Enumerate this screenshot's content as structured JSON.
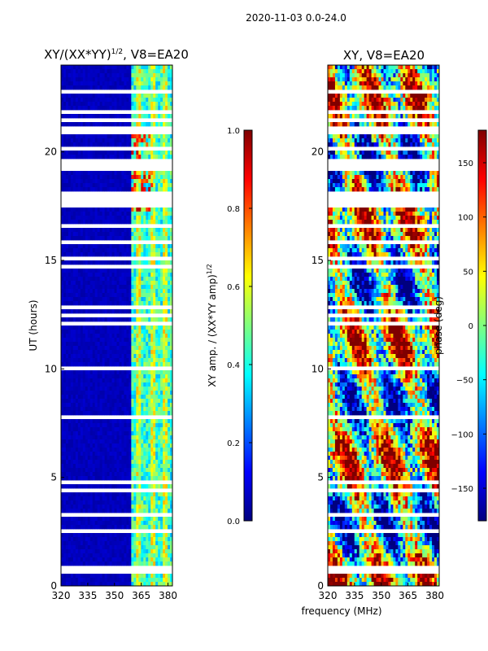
{
  "suptitle": "2020-11-03 0.0-24.0",
  "colors": {
    "background": "#000080",
    "jet": [
      "#00007f",
      "#0000ff",
      "#007fff",
      "#00ffff",
      "#7fff7f",
      "#ffff00",
      "#ff7f00",
      "#ff0000",
      "#7f0000"
    ]
  },
  "chart_data": [
    {
      "type": "heatmap",
      "title": "XY/(XX*YY)",
      "title_sup": "1/2",
      "title_suffix": ", V8=EA20",
      "xlabel": "",
      "ylabel": "UT (hours)",
      "xlim": [
        320,
        382.5
      ],
      "ylim": [
        0,
        24
      ],
      "xticks": [
        320,
        335,
        350,
        365,
        380
      ],
      "yticks": [
        0,
        5,
        10,
        15,
        20
      ],
      "colorbar": {
        "label": "XY amp. / (XX*YY amp)",
        "label_sup": "1/2",
        "range": [
          0.0,
          1.0
        ],
        "ticks": [
          "0.0",
          "0.2",
          "0.4",
          "0.6",
          "0.8",
          "1.0"
        ]
      },
      "description": "Normalized XY amplitude vs frequency and UT; near zero below ~360 MHz, elevated 0.3-0.9 between ~360-382 MHz"
    },
    {
      "type": "heatmap",
      "title": "XY, V8=EA20",
      "xlabel": "frequency (MHz)",
      "ylabel": "",
      "xlim": [
        320,
        382.5
      ],
      "ylim": [
        0,
        24
      ],
      "xticks": [
        320,
        335,
        350,
        365,
        380
      ],
      "yticks": [
        0,
        5,
        10,
        15,
        20
      ],
      "colorbar": {
        "label": "phase (deg)",
        "range": [
          -180,
          180
        ],
        "ticks": [
          "−150",
          "−100",
          "−50",
          "0",
          "50",
          "100",
          "150"
        ],
        "tick_values": [
          -150,
          -100,
          -50,
          0,
          50,
          100,
          150
        ]
      },
      "description": "XY phase vs frequency and UT, full -180 to 180 deg range with streaky structure"
    }
  ]
}
